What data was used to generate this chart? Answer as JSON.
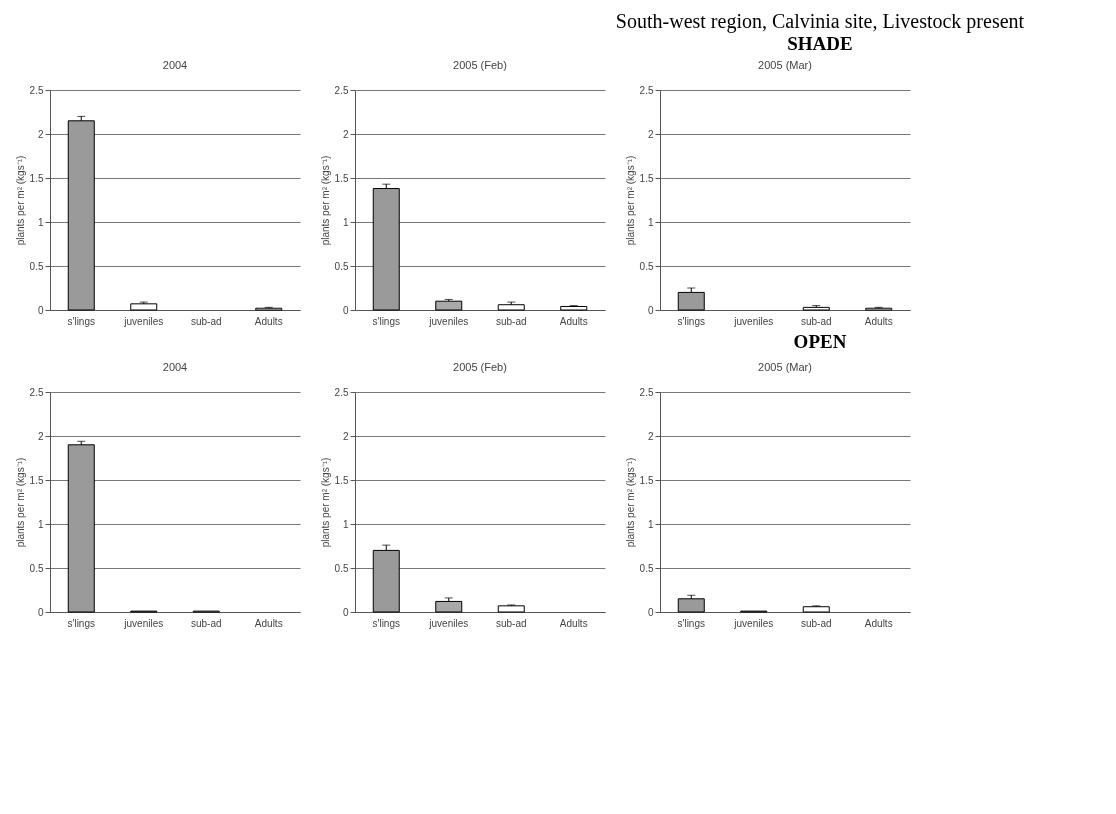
{
  "chart_data": [
    {
      "type": "bar",
      "title": "2004",
      "annotations": [
        "South-west region, Calvinia site, Livestock present",
        "SHADE"
      ],
      "ylabel": "plants per m² (kgs⁻¹)",
      "categories": [
        "s'lings",
        "juveniles",
        "sub-ad",
        "Adults"
      ],
      "values": [
        2.15,
        0.07,
        0,
        0.02
      ],
      "errors": [
        [
          2.15,
          2.2
        ],
        [
          0.07,
          0.09
        ],
        null,
        [
          0.02,
          0.03
        ]
      ],
      "colors": [
        "#9a9a9a",
        "#ffffff",
        "#ffffff",
        "#ffffff"
      ],
      "ylim": [
        0,
        2.5
      ],
      "yticks": [
        0,
        0.5,
        1,
        1.5,
        2,
        2.5
      ],
      "grid": "y"
    },
    {
      "type": "bar",
      "title": "2005 (Feb)",
      "ylabel": "plants per m² (kgs⁻¹)",
      "categories": [
        "s'lings",
        "juveniles",
        "sub-ad",
        "Adults"
      ],
      "values": [
        1.38,
        0.1,
        0.06,
        0.04
      ],
      "errors": [
        [
          1.38,
          1.43
        ],
        [
          0.1,
          0.12
        ],
        [
          0.06,
          0.09
        ],
        [
          0.04,
          0.05
        ]
      ],
      "colors": [
        "#9a9a9a",
        "#a8a8a8",
        "#ffffff",
        "#ffffff"
      ],
      "ylim": [
        0,
        2.5
      ],
      "yticks": [
        0,
        0.5,
        1,
        1.5,
        2,
        2.5
      ],
      "grid": "y"
    },
    {
      "type": "bar",
      "title": "2005 (Mar)",
      "ylabel": "plants per m² (kgs⁻¹)",
      "categories": [
        "s'lings",
        "juveniles",
        "sub-ad",
        "Adults"
      ],
      "values": [
        0.2,
        0,
        0.03,
        0.02
      ],
      "errors": [
        [
          0.2,
          0.25
        ],
        null,
        [
          0.03,
          0.05
        ],
        [
          0.02,
          0.03
        ]
      ],
      "colors": [
        "#9a9a9a",
        "#a8a8a8",
        "#ffffff",
        "#ffffff"
      ],
      "ylim": [
        0,
        2.5
      ],
      "yticks": [
        0,
        0.5,
        1,
        1.5,
        2,
        2.5
      ],
      "grid": "y"
    },
    {
      "type": "bar",
      "title": "2004",
      "annotations": [
        "OPEN"
      ],
      "ylabel": "plants per m² (kgs⁻¹)",
      "categories": [
        "s'lings",
        "juveniles",
        "sub-ad",
        "Adults"
      ],
      "values": [
        1.9,
        0.01,
        0.01,
        0
      ],
      "errors": [
        [
          1.9,
          1.94
        ],
        null,
        null,
        null
      ],
      "colors": [
        "#9a9a9a",
        "#a8a8a8",
        "#ffffff",
        "#ffffff"
      ],
      "ylim": [
        0,
        2.5
      ],
      "yticks": [
        0,
        0.5,
        1,
        1.5,
        2,
        2.5
      ],
      "grid": "y"
    },
    {
      "type": "bar",
      "title": "2005 (Feb)",
      "ylabel": "plants per m² (kgs⁻¹)",
      "categories": [
        "s'lings",
        "juveniles",
        "sub-ad",
        "Adults"
      ],
      "values": [
        0.7,
        0.12,
        0.07,
        0
      ],
      "errors": [
        [
          0.7,
          0.76
        ],
        [
          0.12,
          0.16
        ],
        [
          0.07,
          0.08
        ],
        null
      ],
      "colors": [
        "#9a9a9a",
        "#a8a8a8",
        "#ffffff",
        "#ffffff"
      ],
      "ylim": [
        0,
        2.5
      ],
      "yticks": [
        0,
        0.5,
        1,
        1.5,
        2,
        2.5
      ],
      "grid": "y"
    },
    {
      "type": "bar",
      "title": "2005 (Mar)",
      "ylabel": "plants per m² (kgs⁻¹)",
      "categories": [
        "s'lings",
        "juveniles",
        "sub-ad",
        "Adults"
      ],
      "values": [
        0.15,
        0.01,
        0.06,
        0
      ],
      "errors": [
        [
          0.15,
          0.19
        ],
        null,
        [
          0.06,
          0.07
        ],
        null
      ],
      "colors": [
        "#9a9a9a",
        "#a8a8a8",
        "#ffffff",
        "#ffffff"
      ],
      "ylim": [
        0,
        2.5
      ],
      "yticks": [
        0,
        0.5,
        1,
        1.5,
        2,
        2.5
      ],
      "grid": "y"
    }
  ]
}
